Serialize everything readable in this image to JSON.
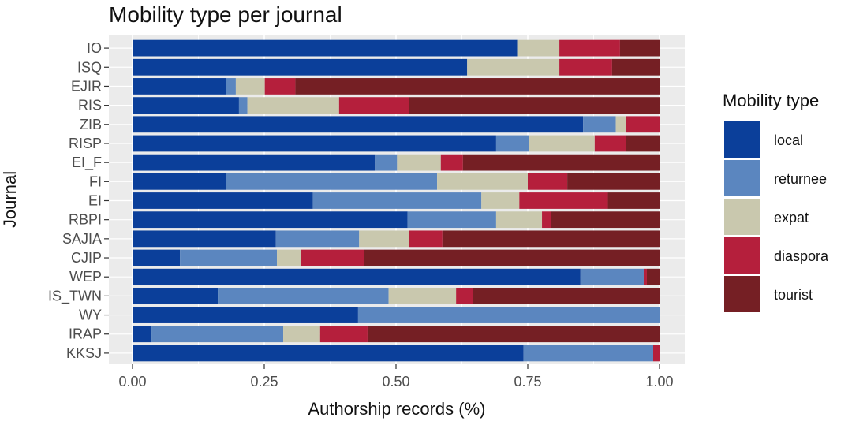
{
  "chart_data": {
    "type": "bar",
    "orientation": "horizontal",
    "stacked": true,
    "title": "Mobility type per journal",
    "xlabel": "Authorship records (%)",
    "ylabel": "Journal",
    "xlim": [
      0,
      1
    ],
    "x_ticks": [
      "0.00",
      "0.25",
      "0.50",
      "0.75",
      "1.00"
    ],
    "grid": true,
    "legend_title": "Mobility type",
    "legend_position": "right",
    "categories": [
      "IO",
      "ISQ",
      "EJIR",
      "RIS",
      "ZIB",
      "RISP",
      "EI_F",
      "FI",
      "EI",
      "RBPI",
      "SAJIA",
      "CJIP",
      "WEP",
      "IS_TWN",
      "WY",
      "IRAP",
      "KKSJ"
    ],
    "series": [
      {
        "name": "local",
        "color": "#0b3f9a",
        "values": [
          0.73,
          0.635,
          0.178,
          0.202,
          0.855,
          0.69,
          0.46,
          0.178,
          0.342,
          0.522,
          0.272,
          0.09,
          0.85,
          0.162,
          0.428,
          0.036,
          0.742
        ]
      },
      {
        "name": "returnee",
        "color": "#5b86bf",
        "values": [
          0.0,
          0.0,
          0.018,
          0.016,
          0.062,
          0.062,
          0.042,
          0.4,
          0.32,
          0.168,
          0.158,
          0.184,
          0.12,
          0.324,
          0.572,
          0.25,
          0.246
        ]
      },
      {
        "name": "expat",
        "color": "#c9c8ae",
        "values": [
          0.08,
          0.175,
          0.055,
          0.174,
          0.02,
          0.125,
          0.083,
          0.172,
          0.072,
          0.087,
          0.095,
          0.045,
          0.0,
          0.128,
          0.0,
          0.07,
          0.0
        ]
      },
      {
        "name": "diaspora",
        "color": "#b51f3c",
        "values": [
          0.115,
          0.1,
          0.058,
          0.133,
          0.063,
          0.06,
          0.042,
          0.075,
          0.168,
          0.017,
          0.063,
          0.12,
          0.006,
          0.032,
          0.0,
          0.09,
          0.012
        ]
      },
      {
        "name": "tourist",
        "color": "#751f24",
        "values": [
          0.075,
          0.09,
          0.691,
          0.475,
          0.0,
          0.063,
          0.373,
          0.175,
          0.098,
          0.206,
          0.412,
          0.561,
          0.024,
          0.354,
          0.0,
          0.554,
          0.0
        ]
      }
    ]
  }
}
